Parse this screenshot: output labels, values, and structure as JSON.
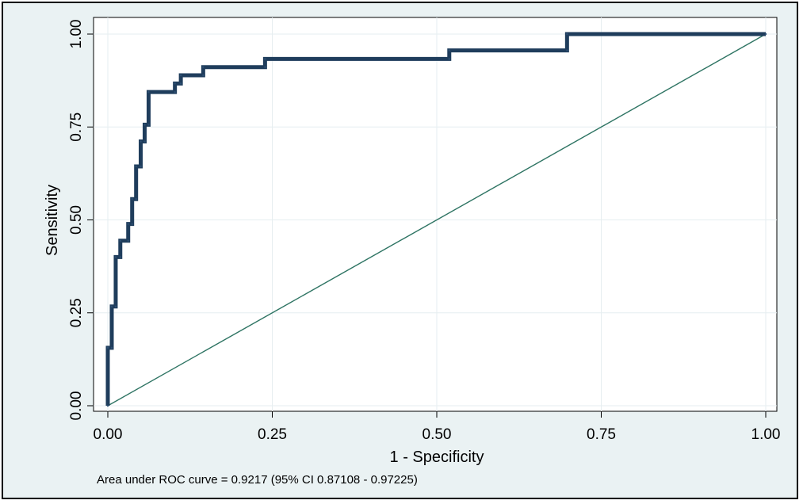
{
  "chart_data": {
    "type": "line",
    "title": "",
    "xlabel": "1 - Specificity",
    "ylabel": "Sensitivity",
    "xlim": [
      0,
      1
    ],
    "ylim": [
      0,
      1
    ],
    "x_ticks": [
      "0.00",
      "0.25",
      "0.50",
      "0.75",
      "1.00"
    ],
    "y_ticks": [
      "0.00",
      "0.25",
      "0.50",
      "0.75",
      "1.00"
    ],
    "grid": true,
    "annotation": "Area under ROC curve = 0.9217  (95% CI 0.87108 - 0.97225)",
    "series": [
      {
        "color": "#1f3d5c",
        "points": [
          [
            0.0,
            0.0
          ],
          [
            0.0,
            0.156
          ],
          [
            0.006,
            0.156
          ],
          [
            0.006,
            0.267
          ],
          [
            0.012,
            0.267
          ],
          [
            0.012,
            0.4
          ],
          [
            0.019,
            0.4
          ],
          [
            0.019,
            0.444
          ],
          [
            0.031,
            0.444
          ],
          [
            0.031,
            0.489
          ],
          [
            0.037,
            0.489
          ],
          [
            0.037,
            0.556
          ],
          [
            0.043,
            0.556
          ],
          [
            0.043,
            0.644
          ],
          [
            0.05,
            0.644
          ],
          [
            0.05,
            0.711
          ],
          [
            0.056,
            0.711
          ],
          [
            0.056,
            0.756
          ],
          [
            0.062,
            0.756
          ],
          [
            0.062,
            0.844
          ],
          [
            0.102,
            0.844
          ],
          [
            0.102,
            0.867
          ],
          [
            0.111,
            0.867
          ],
          [
            0.111,
            0.889
          ],
          [
            0.145,
            0.889
          ],
          [
            0.145,
            0.911
          ],
          [
            0.239,
            0.911
          ],
          [
            0.239,
            0.933
          ],
          [
            0.519,
            0.933
          ],
          [
            0.519,
            0.956
          ],
          [
            0.698,
            0.956
          ],
          [
            0.698,
            1.0
          ],
          [
            1.0,
            1.0
          ]
        ]
      },
      {
        "color": "#2e7463",
        "points": [
          [
            0,
            0
          ],
          [
            1,
            1
          ]
        ]
      }
    ]
  }
}
